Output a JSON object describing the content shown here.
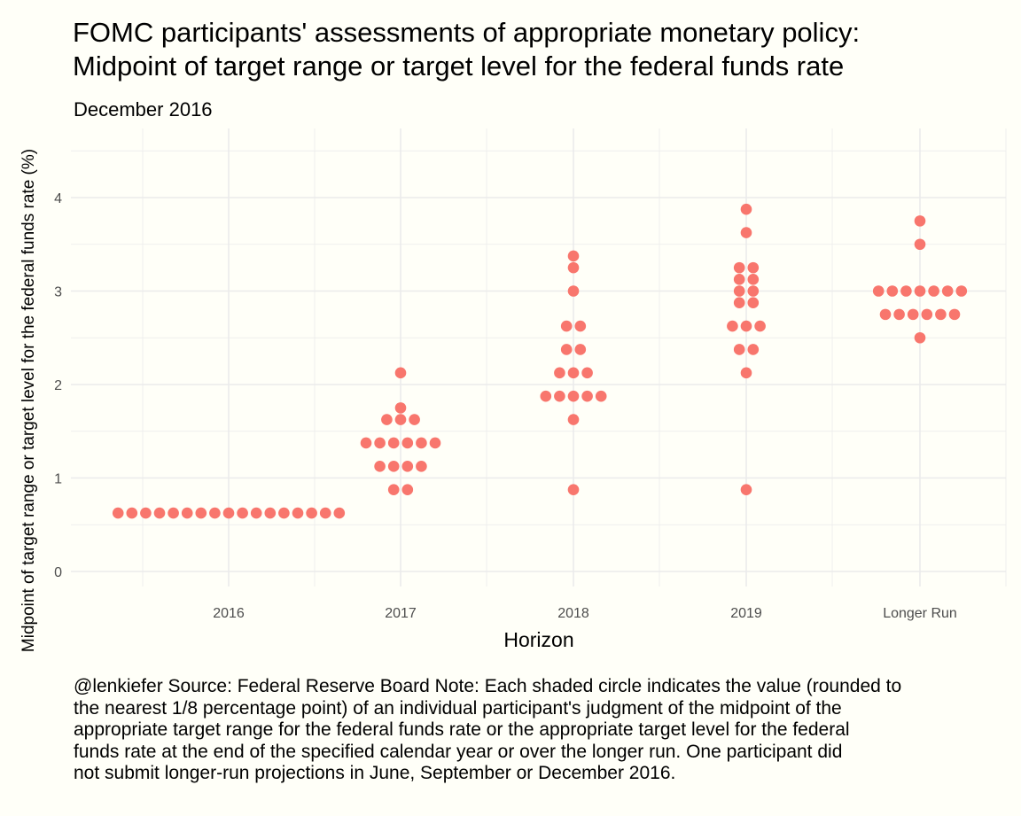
{
  "chart_data": {
    "type": "scatter",
    "title_lines": [
      "FOMC participants' assessments of appropriate monetary policy:",
      "Midpoint of target range or target level for the federal funds rate"
    ],
    "subtitle": "December 2016",
    "xlabel": "Horizon",
    "ylabel": "Midpoint of target range or target level for the federal funds rate (%)",
    "categories": [
      "2016",
      "2017",
      "2018",
      "2019",
      "Longer Run"
    ],
    "ylim": [
      -0.15,
      4.65
    ],
    "yticks": [
      0,
      1,
      2,
      3,
      4
    ],
    "grid": true,
    "point_color": "#f8766d",
    "series": [
      {
        "category": "2016",
        "points": [
          {
            "value": 0.625,
            "count": 17
          }
        ]
      },
      {
        "category": "2017",
        "points": [
          {
            "value": 2.125,
            "count": 1
          },
          {
            "value": 1.75,
            "count": 1
          },
          {
            "value": 1.625,
            "count": 3
          },
          {
            "value": 1.375,
            "count": 6
          },
          {
            "value": 1.125,
            "count": 4
          },
          {
            "value": 0.875,
            "count": 2
          }
        ]
      },
      {
        "category": "2018",
        "points": [
          {
            "value": 3.375,
            "count": 1
          },
          {
            "value": 3.25,
            "count": 1
          },
          {
            "value": 3.0,
            "count": 1
          },
          {
            "value": 2.625,
            "count": 2
          },
          {
            "value": 2.375,
            "count": 2
          },
          {
            "value": 2.125,
            "count": 3
          },
          {
            "value": 1.875,
            "count": 5
          },
          {
            "value": 1.625,
            "count": 1
          },
          {
            "value": 0.875,
            "count": 1
          }
        ]
      },
      {
        "category": "2019",
        "points": [
          {
            "value": 3.875,
            "count": 1
          },
          {
            "value": 3.625,
            "count": 1
          },
          {
            "value": 3.25,
            "count": 2
          },
          {
            "value": 3.125,
            "count": 2
          },
          {
            "value": 3.0,
            "count": 2
          },
          {
            "value": 2.875,
            "count": 2
          },
          {
            "value": 2.625,
            "count": 3
          },
          {
            "value": 2.375,
            "count": 2
          },
          {
            "value": 2.125,
            "count": 1
          },
          {
            "value": 0.875,
            "count": 1
          }
        ]
      },
      {
        "category": "Longer Run",
        "points": [
          {
            "value": 3.75,
            "count": 1
          },
          {
            "value": 3.5,
            "count": 1
          },
          {
            "value": 3.0,
            "count": 7
          },
          {
            "value": 2.75,
            "count": 6
          },
          {
            "value": 2.5,
            "count": 1
          }
        ]
      }
    ]
  },
  "caption_lines": [
    "@lenkiefer Source: Federal Reserve Board Note: Each shaded circle indicates the value (rounded to",
    "the nearest 1/8 percentage point) of an individual participant's judgment of the midpoint of the",
    "appropriate target range for the federal funds rate or the appropriate target level for the federal",
    "funds rate at the end of the specified calendar year or over the longer run. One participant did",
    "not submit longer-run projections in June, September or December 2016."
  ]
}
